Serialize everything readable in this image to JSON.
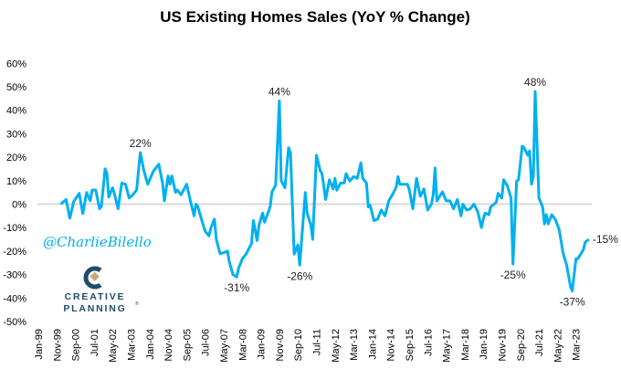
{
  "chart_data": {
    "type": "line",
    "title": "US Existing Homes Sales (YoY % Change)",
    "xlabel": "",
    "ylabel": "",
    "ylim": [
      -50,
      60
    ],
    "yticks": [
      "60%",
      "50%",
      "40%",
      "30%",
      "20%",
      "10%",
      "0%",
      "-10%",
      "-20%",
      "-30%",
      "-40%",
      "-50%"
    ],
    "ytick_values": [
      60,
      50,
      40,
      30,
      20,
      10,
      0,
      -10,
      -20,
      -30,
      -40,
      -50
    ],
    "xticks": [
      "Jan-99",
      "Nov-99",
      "Sep-00",
      "Jul-01",
      "May-02",
      "Mar-03",
      "Jan-04",
      "Nov-04",
      "Sep-05",
      "Jul-06",
      "May-07",
      "Mar-08",
      "Jan-09",
      "Nov-09",
      "Sep-10",
      "Jul-11",
      "May-12",
      "Mar-13",
      "Jan-14",
      "Nov-14",
      "Sep-15",
      "Jul-16",
      "May-17",
      "Mar-18",
      "Jan-19",
      "Nov-19",
      "Sep-20",
      "Jul-21",
      "May-22",
      "Mar-23"
    ],
    "xlim": [
      "Jan-99",
      "Dec-23"
    ],
    "grid": false,
    "zero_line": true,
    "line_color": "#00B0F0",
    "x": [
      "Jan-00",
      "Apr-00",
      "Jun-00",
      "Aug-00",
      "Nov-00",
      "Jan-01",
      "Mar-01",
      "May-01",
      "Jun-01",
      "Aug-01",
      "Oct-01",
      "Nov-01",
      "Jan-02",
      "Feb-02",
      "Mar-02",
      "May-02",
      "Jun-02",
      "Aug-02",
      "Oct-02",
      "Dec-02",
      "Feb-03",
      "Apr-03",
      "Jun-03",
      "Aug-03",
      "Oct-03",
      "Dec-03",
      "Mar-04",
      "Jun-04",
      "Aug-04",
      "Sep-04",
      "Nov-04",
      "Dec-04",
      "Jan-05",
      "Mar-05",
      "Apr-05",
      "Jun-05",
      "Sep-05",
      "Nov-05",
      "Jan-06",
      "Feb-06",
      "Mar-06",
      "May-06",
      "Jul-06",
      "Sep-06",
      "Oct-06",
      "Dec-06",
      "Jan-07",
      "Mar-07",
      "May-07",
      "Jul-07",
      "Aug-07",
      "Oct-07",
      "Dec-07",
      "Jan-08",
      "Mar-08",
      "May-08",
      "Aug-08",
      "Sep-08",
      "Nov-08",
      "Dec-08",
      "Feb-09",
      "Mar-09",
      "Jun-09",
      "Jul-09",
      "Sep-09",
      "Nov-09",
      "Dec-09",
      "Feb-10",
      "Apr-10",
      "May-10",
      "Jul-10",
      "Sep-10",
      "Oct-10",
      "Jan-11",
      "Feb-11",
      "Apr-11",
      "May-11",
      "Jul-11",
      "Sep-11",
      "Oct-11",
      "Dec-11",
      "Feb-12",
      "Apr-12",
      "May-12",
      "Jun-12",
      "Aug-12",
      "Oct-12",
      "Nov-12",
      "Jan-13",
      "Mar-13",
      "May-13",
      "Jul-13",
      "Aug-13",
      "Oct-13",
      "Nov-13",
      "Dec-13",
      "Feb-14",
      "Apr-14",
      "Jun-14",
      "Aug-14",
      "Oct-14",
      "Dec-14",
      "Feb-15",
      "Mar-15",
      "Apr-15",
      "Aug-15",
      "Sep-15",
      "Nov-15",
      "Jan-16",
      "Mar-16",
      "May-16",
      "Jul-16",
      "Sep-16",
      "Oct-16",
      "Nov-16",
      "Dec-16",
      "Mar-17",
      "May-17",
      "Jul-17",
      "Sep-17",
      "Nov-17",
      "Jan-18",
      "Feb-18",
      "Apr-18",
      "Jun-18",
      "Aug-18",
      "Oct-18",
      "Dec-18",
      "Jan-19",
      "Feb-19",
      "Apr-19",
      "May-19",
      "Aug-19",
      "Sep-19",
      "Nov-19",
      "Dec-19",
      "Feb-20",
      "Apr-20",
      "May-20",
      "Jul-20",
      "Aug-20",
      "Oct-20",
      "Nov-20",
      "Jan-21",
      "Feb-21",
      "Mar-21",
      "Apr-21",
      "May-21",
      "Jul-21",
      "Sep-21",
      "Oct-21",
      "Nov-21",
      "Dec-21",
      "Feb-22",
      "Apr-22",
      "Jun-22",
      "Aug-22",
      "Oct-22",
      "Dec-22",
      "Jan-23",
      "Mar-23",
      "Apr-23",
      "Jul-23",
      "Aug-23",
      "Oct-23"
    ],
    "y": [
      0,
      2,
      -6,
      1,
      4.6,
      -4,
      5,
      1.4,
      6,
      6,
      -2,
      -1,
      15,
      13,
      3,
      7,
      4.6,
      -2,
      9,
      8.5,
      2.6,
      4,
      6,
      22,
      14,
      8.5,
      14,
      17,
      9,
      1.4,
      12,
      8.5,
      12,
      5,
      6,
      4,
      8.5,
      1.4,
      -5,
      0,
      -1,
      -6.5,
      -11.6,
      -13.5,
      -10.3,
      -6.4,
      -15,
      -21,
      -20.7,
      -20,
      -24.6,
      -30,
      -31,
      -27.4,
      -23.3,
      -21.3,
      -16.8,
      -7,
      -15.5,
      -9,
      -3.8,
      -7.7,
      -1.2,
      5.2,
      8,
      44,
      10,
      7,
      24,
      22,
      -21.3,
      -17.4,
      -26,
      5,
      -3.8,
      -9,
      -15,
      20.8,
      14.3,
      13,
      2,
      10.4,
      6.5,
      11,
      5.9,
      9,
      9,
      13,
      9.8,
      11.7,
      11,
      17.6,
      11,
      9,
      -1.2,
      -0.5,
      -7,
      -6.4,
      -2.5,
      -5,
      1.4,
      4,
      7.2,
      11.7,
      8.5,
      8.5,
      6.5,
      -2,
      11,
      3.3,
      6.5,
      -2.5,
      0,
      4,
      15.4,
      1.4,
      5.2,
      1.4,
      1.4,
      -2,
      2,
      -5,
      0,
      -2.5,
      -2,
      0,
      -3.2,
      -10,
      -6.4,
      -3.8,
      -4.5,
      -1.2,
      0.8,
      4.6,
      2.6,
      10.4,
      7.8,
      2.6,
      -25.5,
      9.8,
      10.4,
      24.7,
      24,
      20.8,
      22.7,
      8.5,
      11.7,
      48,
      2.6,
      -1.2,
      -8.4,
      -4.5,
      -8.4,
      -4.5,
      -6.7,
      -11,
      -20.7,
      -26,
      -35,
      -37,
      -23.3,
      -23.3,
      -19.4,
      -16.2,
      -15
    ],
    "annotations": [
      {
        "text": "22%",
        "x": "Aug-03",
        "y": 22,
        "pos": "above"
      },
      {
        "text": "-31%",
        "x": "Dec-07",
        "y": -31,
        "pos": "below"
      },
      {
        "text": "44%",
        "x": "Nov-09",
        "y": 44,
        "pos": "above"
      },
      {
        "text": "-26%",
        "x": "Oct-10",
        "y": -26,
        "pos": "below"
      },
      {
        "text": "-25%",
        "x": "May-20",
        "y": -25.5,
        "pos": "below"
      },
      {
        "text": "48%",
        "x": "May-21",
        "y": 48,
        "pos": "above"
      },
      {
        "text": "-37%",
        "x": "Jan-23",
        "y": -37,
        "pos": "below"
      },
      {
        "text": "-15%",
        "x": "Oct-23",
        "y": -15,
        "pos": "right"
      }
    ]
  },
  "watermark": "@CharlieBilello",
  "logo": {
    "line1": "CREATIVE",
    "line2": "PLANNING",
    "mark": "®",
    "colors": {
      "navy": "#1F4E6B",
      "gold": "#C8A97E"
    }
  }
}
